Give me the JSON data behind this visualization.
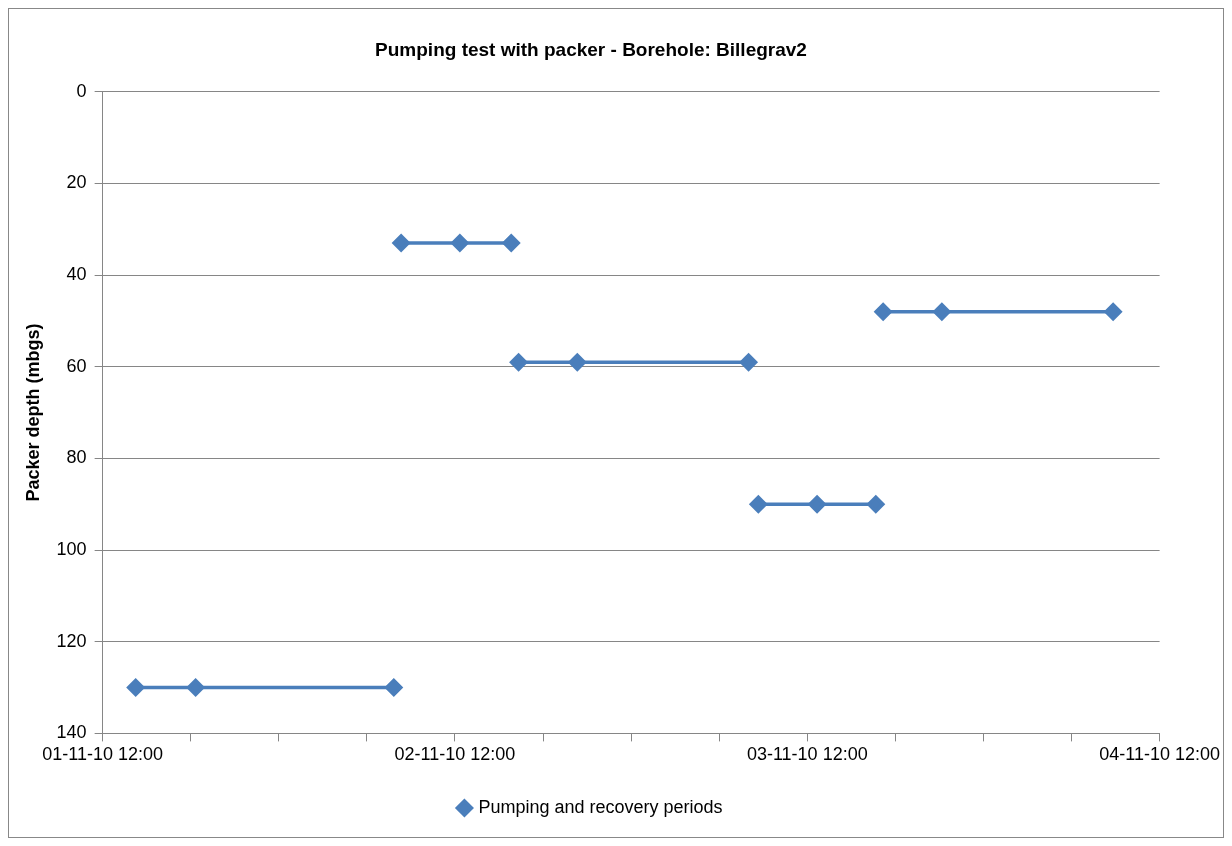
{
  "chart_data": {
    "type": "line",
    "title": "Pumping test with packer - Borehole: Billegrav2",
    "ylabel": "Packer depth (mbgs)",
    "series": [
      {
        "name": "Pumping and recovery periods",
        "color": "#4a7ebb",
        "x": [
          "--11-01T14:15",
          "--11-01T18:20",
          "--11-02T07:50"
        ],
        "values": [
          130,
          130,
          130
        ]
      },
      {
        "color": "#4a7ebb",
        "x": [
          "--11-02T08:20",
          "--11-02T12:20",
          "--11-02T15:50"
        ],
        "values": [
          33,
          33,
          33
        ]
      },
      {
        "color": "#4a7ebb",
        "x": [
          "--11-02T16:20",
          "--11-02T20:20",
          "--11-03T08:00"
        ],
        "values": [
          59,
          59,
          59
        ]
      },
      {
        "color": "#4a7ebb",
        "x": [
          "--11-03T08:40",
          "--11-03T12:40",
          "--11-03T16:40"
        ],
        "values": [
          90,
          90,
          90
        ]
      },
      {
        "color": "#4a7ebb",
        "x": [
          "--11-03T17:10",
          "--11-03T21:10",
          "--11-04T08:50"
        ],
        "values": [
          48,
          48,
          48
        ]
      }
    ],
    "xlim": [
      "--11-01T12:00",
      "--11-04T12:00"
    ],
    "xticks": [
      {
        "value": "--11-01T12:00",
        "label": "01-11-10 12:00"
      },
      {
        "value": "--11-01T18:00",
        "label": null
      },
      {
        "value": "--11-02T00:00",
        "label": null
      },
      {
        "value": "--11-02T06:00",
        "label": null
      },
      {
        "value": "--11-02T12:00",
        "label": "02-11-10 12:00"
      },
      {
        "value": "--11-02T18:00",
        "label": null
      },
      {
        "value": "--11-03T00:00",
        "label": null
      },
      {
        "value": "--11-03T06:00",
        "label": null
      },
      {
        "value": "--11-03T12:00",
        "label": "03-11-10 12:00"
      },
      {
        "value": "--11-03T18:00",
        "label": null
      },
      {
        "value": "--11-04T00:00",
        "label": null
      },
      {
        "value": "--11-04T06:00",
        "label": null
      },
      {
        "value": "--11-04T12:00",
        "label": "04-11-10 12:00"
      }
    ],
    "ylim": [
      140,
      0
    ],
    "yticks": [
      0,
      20,
      40,
      60,
      80,
      100,
      120,
      140
    ],
    "grid": "y",
    "legend": "bottom",
    "marker": "diamond",
    "line_style": "solid"
  }
}
